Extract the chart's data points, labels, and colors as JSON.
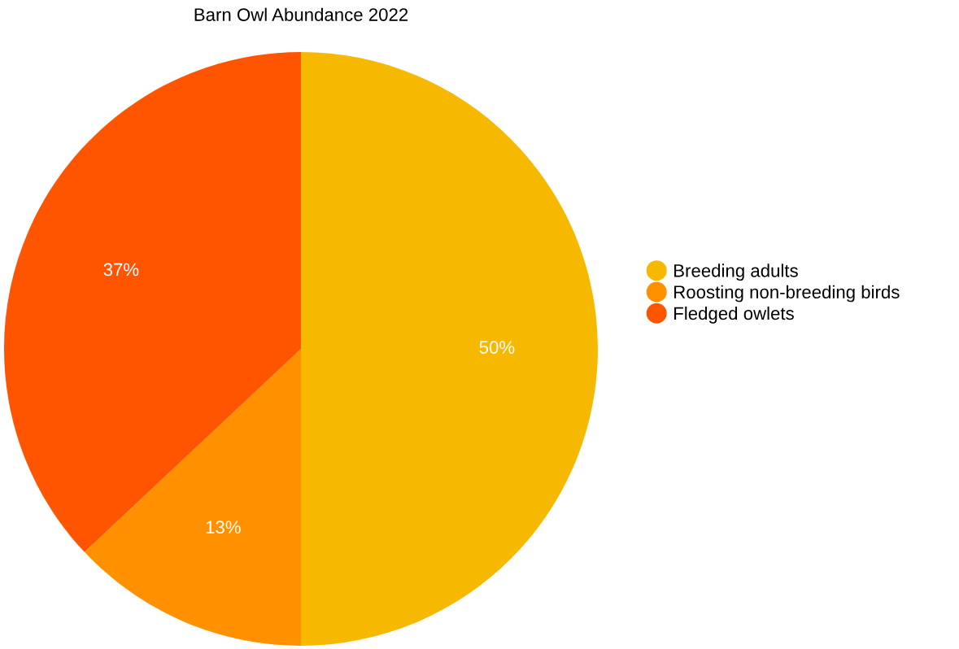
{
  "chart_data": {
    "type": "pie",
    "title": "Barn Owl Abundance 2022",
    "categories": [
      "Breeding adults",
      "Roosting non-breeding birds",
      "Fledged owlets"
    ],
    "values": [
      50,
      13,
      37
    ],
    "colors": [
      "#f7b900",
      "#ff9100",
      "#ff5500"
    ],
    "value_labels": [
      "50%",
      "13%",
      "37%"
    ],
    "legend": "right"
  }
}
